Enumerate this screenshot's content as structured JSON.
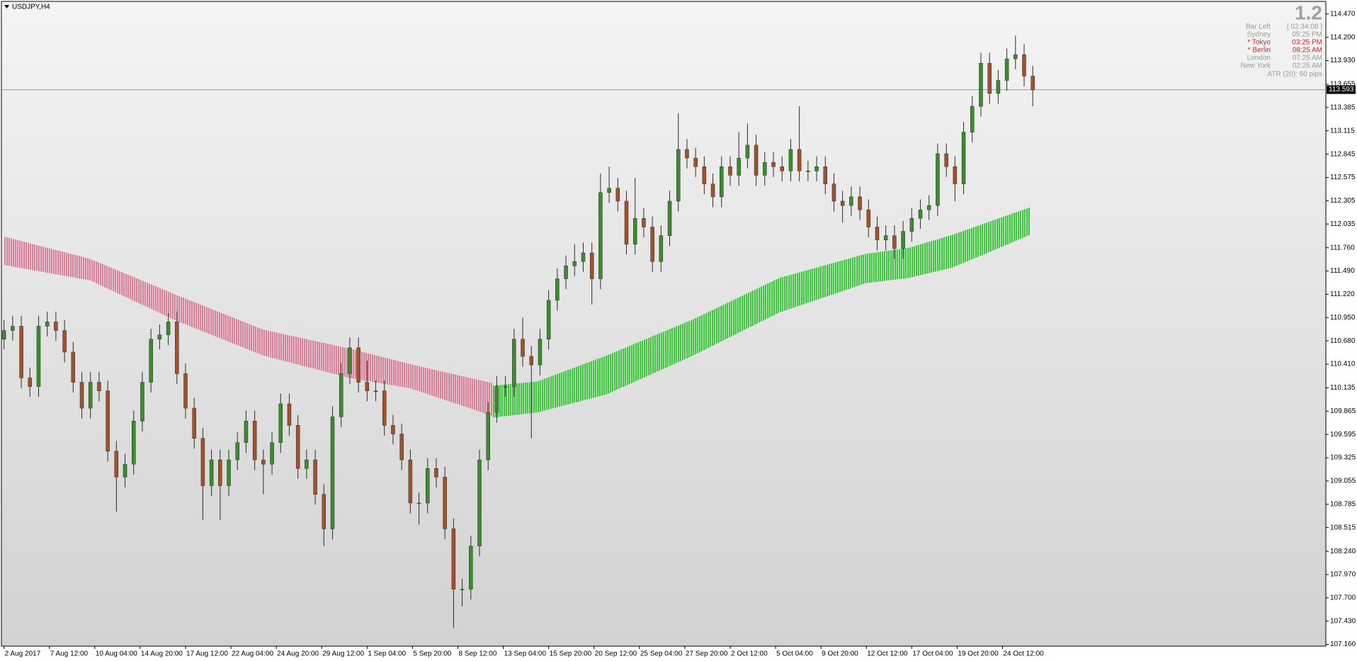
{
  "chart_data": {
    "type": "candlestick",
    "title": "USDJPY,H4",
    "up_color": "#3d8b2f",
    "down_color": "#a0522d",
    "wick_color": "#2b2b2b",
    "open": [
      110.7,
      110.8,
      110.85,
      110.25,
      110.15,
      110.85,
      110.9,
      110.8,
      110.55,
      110.2,
      109.9,
      110.2,
      110.1,
      109.4,
      109.1,
      109.25,
      109.75,
      110.2,
      110.7,
      110.75,
      110.9,
      110.3,
      109.9,
      109.55,
      109.0,
      109.3,
      109.0,
      109.3,
      109.5,
      109.75,
      109.3,
      109.25,
      109.5,
      109.95,
      109.7,
      109.2,
      109.3,
      108.9,
      108.5,
      109.8,
      110.3,
      110.6,
      110.2,
      110.1,
      110.1,
      109.7,
      109.6,
      109.3,
      108.8,
      108.8,
      109.2,
      109.1,
      108.5,
      107.8,
      107.8,
      108.3,
      109.3,
      109.85,
      110.15,
      110.15,
      110.7,
      110.5,
      110.4,
      110.7,
      111.15,
      111.4,
      111.55,
      111.6,
      111.7,
      111.4,
      112.4,
      112.45,
      112.3,
      111.8,
      112.1,
      112.0,
      111.6,
      111.9,
      112.3,
      112.9,
      112.8,
      112.7,
      112.5,
      112.35,
      112.7,
      112.6,
      112.8,
      112.95,
      112.6,
      112.75,
      112.7,
      112.65,
      112.9,
      112.65,
      112.65,
      112.7,
      112.5,
      112.3,
      112.25,
      112.35,
      112.2,
      112.0,
      111.85,
      111.9,
      111.75,
      111.95,
      112.1,
      112.2,
      112.25,
      112.85,
      112.7,
      112.5,
      113.1,
      113.4,
      113.9,
      113.55,
      113.7,
      113.95,
      114.0,
      113.75
    ],
    "high": [
      110.92,
      110.97,
      110.97,
      110.37,
      110.97,
      111.02,
      111.02,
      110.92,
      110.67,
      110.32,
      110.32,
      110.32,
      110.22,
      109.52,
      109.37,
      109.87,
      110.32,
      110.82,
      110.87,
      111.0,
      111.02,
      110.42,
      110.02,
      109.67,
      109.42,
      109.42,
      109.42,
      109.62,
      109.87,
      109.87,
      109.42,
      109.62,
      110.07,
      110.07,
      109.82,
      109.42,
      109.42,
      109.02,
      109.92,
      110.42,
      110.72,
      110.72,
      110.45,
      110.22,
      110.22,
      109.82,
      109.72,
      109.42,
      108.92,
      109.32,
      109.32,
      109.22,
      108.62,
      107.92,
      108.42,
      109.42,
      109.97,
      110.27,
      110.27,
      110.82,
      110.95,
      110.62,
      110.82,
      111.27,
      111.52,
      111.67,
      111.8,
      111.82,
      111.82,
      112.62,
      112.7,
      112.57,
      112.42,
      112.57,
      112.22,
      112.12,
      112.02,
      112.42,
      113.32,
      113.02,
      112.92,
      112.82,
      112.62,
      112.82,
      112.82,
      113.1,
      113.2,
      113.07,
      112.87,
      112.87,
      112.82,
      113.02,
      113.4,
      112.77,
      112.82,
      112.82,
      112.62,
      112.42,
      112.47,
      112.47,
      112.32,
      112.12,
      112.02,
      112.02,
      112.07,
      112.22,
      112.32,
      112.37,
      112.97,
      112.97,
      112.82,
      113.22,
      113.52,
      114.02,
      114.02,
      113.82,
      114.07,
      114.22,
      114.12,
      113.87
    ],
    "low": [
      110.58,
      110.68,
      110.13,
      110.03,
      110.03,
      110.73,
      110.68,
      110.43,
      110.08,
      109.78,
      109.78,
      109.98,
      109.28,
      108.7,
      108.98,
      109.13,
      109.63,
      110.08,
      110.58,
      110.63,
      110.18,
      109.78,
      109.43,
      108.6,
      108.88,
      108.6,
      108.88,
      109.18,
      109.38,
      109.18,
      108.9,
      109.13,
      109.38,
      109.58,
      109.08,
      109.08,
      108.78,
      108.3,
      108.38,
      109.68,
      110.18,
      110.08,
      109.98,
      109.98,
      109.58,
      109.48,
      109.18,
      108.68,
      108.55,
      108.68,
      108.98,
      108.38,
      107.35,
      107.6,
      107.68,
      108.18,
      109.18,
      109.73,
      110.03,
      110.03,
      110.38,
      109.55,
      110.28,
      110.58,
      111.03,
      111.28,
      111.43,
      111.48,
      111.1,
      111.28,
      112.28,
      112.18,
      111.68,
      111.68,
      111.88,
      111.48,
      111.48,
      111.78,
      112.18,
      112.68,
      112.58,
      112.38,
      112.23,
      112.23,
      112.48,
      112.48,
      112.68,
      112.48,
      112.48,
      112.58,
      112.53,
      112.53,
      112.53,
      112.53,
      112.53,
      112.38,
      112.18,
      112.05,
      112.13,
      112.08,
      111.88,
      111.73,
      111.73,
      111.63,
      111.63,
      111.83,
      111.98,
      112.08,
      112.13,
      112.58,
      112.3,
      112.38,
      112.98,
      113.28,
      113.43,
      113.43,
      113.58,
      113.83,
      113.63,
      113.4
    ],
    "close": [
      110.8,
      110.85,
      110.25,
      110.15,
      110.85,
      110.9,
      110.8,
      110.55,
      110.2,
      109.9,
      110.2,
      110.1,
      109.4,
      109.1,
      109.25,
      109.75,
      110.2,
      110.7,
      110.75,
      110.9,
      110.3,
      109.9,
      109.55,
      109.0,
      109.3,
      109.0,
      109.3,
      109.5,
      109.75,
      109.3,
      109.25,
      109.5,
      109.95,
      109.7,
      109.2,
      109.3,
      108.9,
      108.5,
      109.8,
      110.3,
      110.6,
      110.2,
      110.1,
      110.1,
      109.7,
      109.6,
      109.3,
      108.8,
      108.8,
      109.2,
      109.1,
      108.5,
      107.8,
      107.8,
      108.3,
      109.3,
      109.85,
      110.15,
      110.15,
      110.7,
      110.5,
      110.4,
      110.7,
      111.15,
      111.4,
      111.55,
      111.6,
      111.7,
      111.4,
      112.4,
      112.45,
      112.3,
      111.8,
      112.1,
      112.0,
      111.6,
      111.9,
      112.3,
      112.9,
      112.8,
      112.7,
      112.5,
      112.35,
      112.7,
      112.6,
      112.8,
      112.95,
      112.6,
      112.75,
      112.7,
      112.65,
      112.9,
      112.65,
      112.65,
      112.7,
      112.5,
      112.3,
      112.25,
      112.35,
      112.2,
      112.0,
      111.85,
      111.9,
      111.75,
      111.95,
      112.1,
      112.2,
      112.25,
      112.85,
      112.7,
      112.5,
      113.1,
      113.4,
      113.9,
      113.55,
      113.7,
      113.95,
      114.0,
      113.75,
      113.59
    ],
    "bands": [
      {
        "color": "#e07a96",
        "x": [
          0,
          10,
          20,
          30,
          40,
          47,
          56.5
        ],
        "upper": [
          111.89,
          111.63,
          111.21,
          110.81,
          110.59,
          110.41,
          110.19
        ],
        "lower": [
          111.56,
          111.38,
          110.91,
          110.51,
          110.25,
          110.13,
          109.81
        ]
      },
      {
        "color": "#33cc33",
        "x": [
          56.5,
          61.7,
          69.7,
          79.7,
          89.7,
          99.7,
          104.7,
          109.7,
          118.7
        ],
        "upper": [
          110.16,
          110.21,
          110.51,
          110.93,
          111.41,
          111.69,
          111.76,
          111.91,
          112.23
        ],
        "lower": [
          109.79,
          109.85,
          110.06,
          110.51,
          111.01,
          111.35,
          111.41,
          111.53,
          111.91
        ]
      }
    ],
    "xlim": [
      -0.3,
      152.9
    ],
    "xticks": [
      {
        "value": 0,
        "label": "2 Aug 2017"
      },
      {
        "value": 5.25,
        "label": "7 Aug 12:00"
      },
      {
        "value": 10.5,
        "label": "10 Aug 04:00"
      },
      {
        "value": 15.75,
        "label": "14 Aug 20:00"
      },
      {
        "value": 21,
        "label": "17 Aug 12:00"
      },
      {
        "value": 26.25,
        "label": "22 Aug 04:00"
      },
      {
        "value": 31.5,
        "label": "24 Aug 20:00"
      },
      {
        "value": 36.75,
        "label": "29 Aug 12:00"
      },
      {
        "value": 42,
        "label": "1 Sep 04:00"
      },
      {
        "value": 47.25,
        "label": "5 Sep 20:00"
      },
      {
        "value": 52.5,
        "label": "8 Sep 12:00"
      },
      {
        "value": 57.75,
        "label": "13 Sep 04:00"
      },
      {
        "value": 63,
        "label": "15 Sep 20:00"
      },
      {
        "value": 68.25,
        "label": "20 Sep 12:00"
      },
      {
        "value": 73.5,
        "label": "25 Sep 04:00"
      },
      {
        "value": 78.75,
        "label": "27 Sep 20:00"
      },
      {
        "value": 84,
        "label": "2 Oct 12:00"
      },
      {
        "value": 89.25,
        "label": "5 Oct 04:00"
      },
      {
        "value": 94.5,
        "label": "9 Oct 20:00"
      },
      {
        "value": 99.75,
        "label": "12 Oct 12:00"
      },
      {
        "value": 105,
        "label": "17 Oct 04:00"
      },
      {
        "value": 110.25,
        "label": "19 Oct 20:00"
      },
      {
        "value": 115.5,
        "label": "24 Oct 12:00"
      }
    ],
    "ylim": [
      107.14,
      114.6
    ],
    "yticks": [
      {
        "value": 107.16,
        "label": "107.160"
      },
      {
        "value": 107.43,
        "label": "107.430"
      },
      {
        "value": 107.7,
        "label": "107.700"
      },
      {
        "value": 107.97,
        "label": "107.970"
      },
      {
        "value": 108.24,
        "label": "108.240"
      },
      108.515,
      108.785,
      109.055,
      109.325,
      109.595,
      109.865,
      110.135,
      {
        "value": 110.41,
        "label": "110.410"
      },
      {
        "value": 110.68,
        "label": "110.680"
      },
      {
        "value": 110.95,
        "label": "110.950"
      },
      {
        "value": 111.22,
        "label": "111.220"
      },
      {
        "value": 111.49,
        "label": "111.490"
      },
      {
        "value": 111.76,
        "label": "111.760"
      },
      112.035,
      112.305,
      112.575,
      112.845,
      113.115,
      113.385,
      113.655,
      {
        "value": 113.93,
        "label": "113.930"
      },
      {
        "value": 114.2,
        "label": "114.200"
      },
      {
        "value": 114.47,
        "label": "114.470"
      }
    ],
    "current_price": {
      "value": 113.593,
      "label": "113.593"
    }
  },
  "info_panel": {
    "value": "1.2",
    "rows": [
      {
        "label": "Bar Left",
        "value": "[ 02:34:08 ]",
        "color": "#9a9a9a"
      },
      {
        "label": "Sydney",
        "value": "05:25 PM",
        "color": "#9a9a9a"
      },
      {
        "label": "* Tokyo",
        "value": "03:25 PM",
        "color": "#e02020"
      },
      {
        "label": "* Berlin",
        "value": "08:25 AM",
        "color": "#e02020"
      },
      {
        "label": "London",
        "value": "07:25 AM",
        "color": "#9a9a9a"
      },
      {
        "label": "New York",
        "value": "02:25 AM",
        "color": "#9a9a9a"
      }
    ],
    "footer": "ATR (20): 60 pips"
  }
}
